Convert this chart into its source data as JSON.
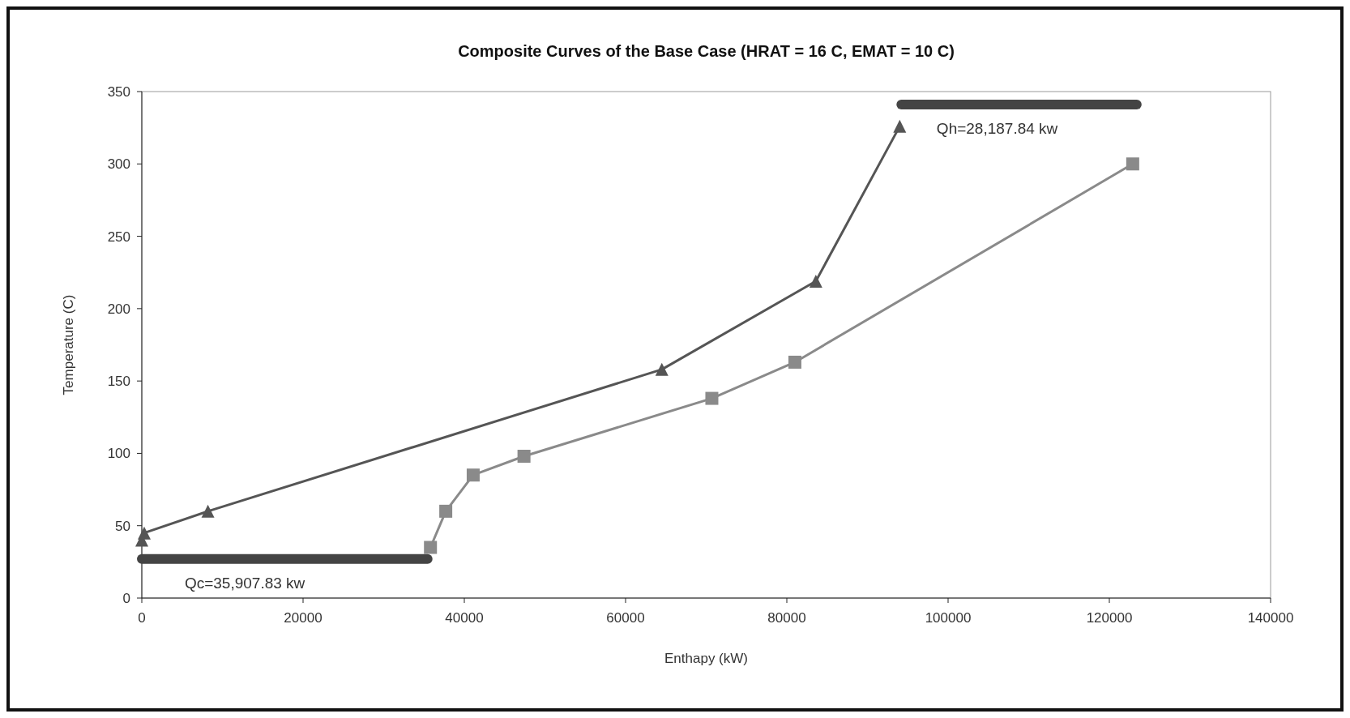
{
  "chart_data": {
    "type": "line",
    "title": "Composite Curves of the Base Case (HRAT = 16 C, EMAT = 10 C)",
    "xlabel": "Enthapy (kW)",
    "ylabel": "Temperature (C)",
    "xlim": [
      0,
      140000
    ],
    "xticks": [
      0,
      20000,
      40000,
      60000,
      80000,
      100000,
      120000,
      140000
    ],
    "ylim": [
      0,
      350
    ],
    "yticks": [
      0,
      50,
      100,
      150,
      200,
      250,
      300,
      350
    ],
    "series": [
      {
        "color": "#555555",
        "marker": "triangle",
        "x": [
          0,
          300,
          8200,
          64500,
          83600,
          94000
        ],
        "values": [
          40,
          45,
          60,
          158,
          219,
          326
        ]
      },
      {
        "color": "#8a8a8a",
        "marker": "square",
        "x": [
          35800,
          37700,
          41100,
          47400,
          70700,
          81000,
          122900
        ],
        "values": [
          35,
          60,
          85,
          98,
          138,
          163,
          300
        ]
      },
      {
        "color": "#444444",
        "marker": "none",
        "x": [
          94200,
          123400
        ],
        "values": [
          341,
          341
        ]
      },
      {
        "color": "#444444",
        "marker": "none",
        "x": [
          0,
          35450
        ],
        "values": [
          27,
          27
        ]
      }
    ],
    "annotations": [
      "Qh=28,187.84 kw",
      "Qc=35,907.83 kw"
    ],
    "grid": false
  }
}
